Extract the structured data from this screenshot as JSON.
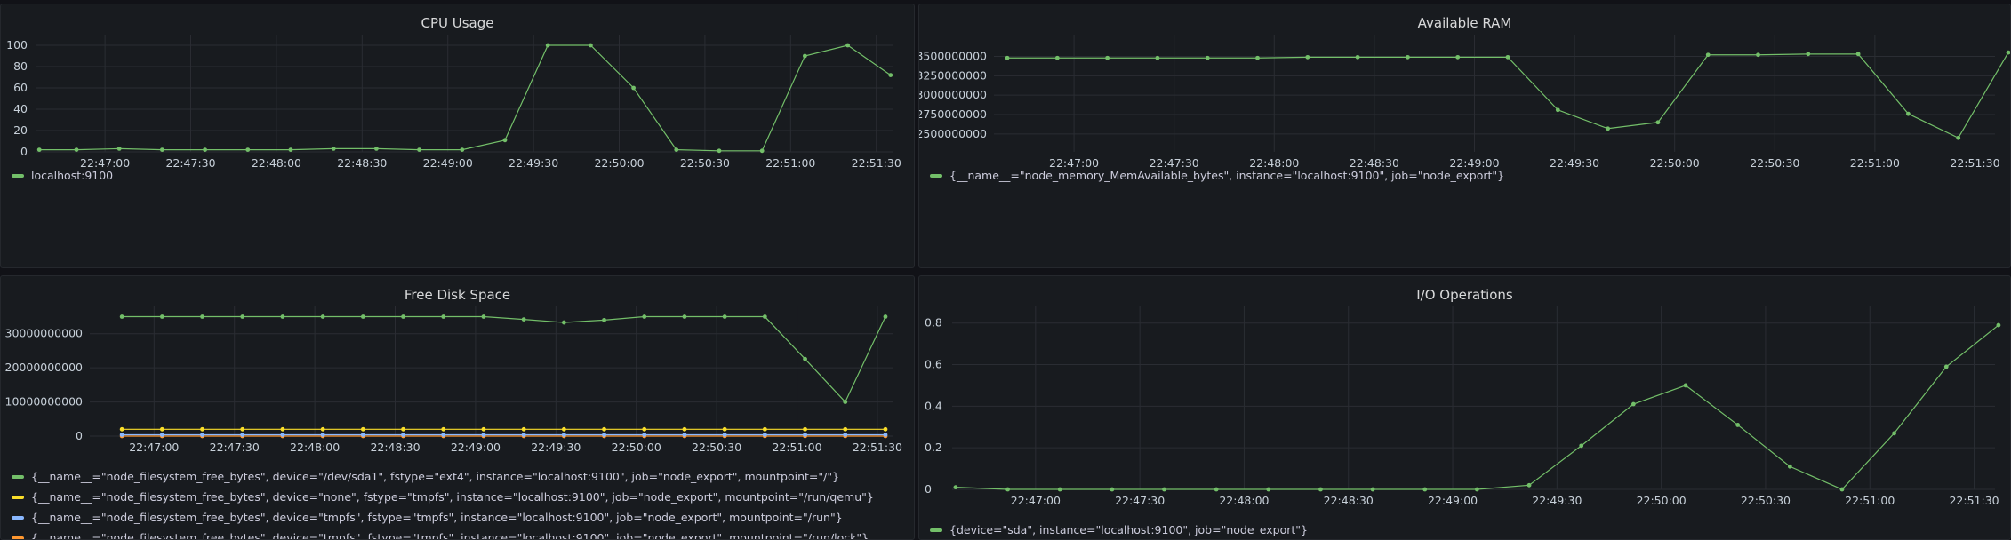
{
  "panels": [
    {
      "id": "cpu",
      "title": "CPU Usage",
      "legend": [
        {
          "label": "localhost:9100",
          "color": "#73bf69"
        }
      ]
    },
    {
      "id": "ram",
      "title": "Available RAM",
      "legend": [
        {
          "label": "{__name__=\"node_memory_MemAvailable_bytes\", instance=\"localhost:9100\", job=\"node_export\"}",
          "color": "#73bf69"
        }
      ]
    },
    {
      "id": "disk",
      "title": "Free Disk Space",
      "legend": [
        {
          "label": "{__name__=\"node_filesystem_free_bytes\", device=\"/dev/sda1\", fstype=\"ext4\", instance=\"localhost:9100\", job=\"node_export\", mountpoint=\"/\"}",
          "color": "#73bf69"
        },
        {
          "label": "{__name__=\"node_filesystem_free_bytes\", device=\"none\", fstype=\"tmpfs\", instance=\"localhost:9100\", job=\"node_export\", mountpoint=\"/run/qemu\"}",
          "color": "#fade2a"
        },
        {
          "label": "{__name__=\"node_filesystem_free_bytes\", device=\"tmpfs\", fstype=\"tmpfs\", instance=\"localhost:9100\", job=\"node_export\", mountpoint=\"/run\"}",
          "color": "#8ab8ff"
        },
        {
          "label": "{__name__=\"node_filesystem_free_bytes\", device=\"tmpfs\", fstype=\"tmpfs\", instance=\"localhost:9100\", job=\"node_export\", mountpoint=\"/run/lock\"}",
          "color": "#ff9830"
        }
      ]
    },
    {
      "id": "io",
      "title": "I/O Operations",
      "legend": [
        {
          "label": "{device=\"sda\", instance=\"localhost:9100\", job=\"node_export\"}",
          "color": "#73bf69"
        }
      ]
    }
  ],
  "chart_data": [
    {
      "type": "line",
      "title": "CPU Usage",
      "x_ticks": [
        "22:47:00",
        "22:47:30",
        "22:48:00",
        "22:48:30",
        "22:49:00",
        "22:49:30",
        "22:50:00",
        "22:50:30",
        "22:51:00",
        "22:51:30"
      ],
      "x_range": [
        "22:46:36",
        "22:51:36"
      ],
      "ylim": [
        0,
        110
      ],
      "y_ticks": [
        "0",
        "20",
        "40",
        "60",
        "80",
        "100"
      ],
      "grid": true,
      "series": [
        {
          "name": "localhost:9100",
          "color": "#73bf69",
          "x": [
            "22:46:37",
            "22:46:50",
            "22:47:05",
            "22:47:20",
            "22:47:35",
            "22:47:50",
            "22:48:05",
            "22:48:20",
            "22:48:35",
            "22:48:50",
            "22:49:05",
            "22:49:20",
            "22:49:35",
            "22:49:50",
            "22:50:05",
            "22:50:20",
            "22:50:35",
            "22:50:50",
            "22:51:05",
            "22:51:20",
            "22:51:35"
          ],
          "values": [
            2,
            2,
            3,
            2,
            2,
            2,
            2,
            3,
            3,
            2,
            2,
            11,
            100,
            100,
            60,
            2,
            1,
            1,
            90,
            100,
            72
          ]
        }
      ]
    },
    {
      "type": "line",
      "title": "Available RAM",
      "x_ticks": [
        "22:47:00",
        "22:47:30",
        "22:48:00",
        "22:48:30",
        "22:49:00",
        "22:49:30",
        "22:50:00",
        "22:50:30",
        "22:51:00",
        "22:51:30"
      ],
      "x_range": [
        "22:46:36",
        "22:51:36"
      ],
      "ylim": [
        2270000000,
        3780000000
      ],
      "y_ticks": [
        "2500000000",
        "2750000000",
        "3000000000",
        "3250000000",
        "3500000000"
      ],
      "grid": true,
      "series": [
        {
          "name": "{__name__=\"node_memory_MemAvailable_bytes\", instance=\"localhost:9100\", job=\"node_export\"}",
          "color": "#73bf69",
          "x": [
            "22:46:40",
            "22:46:55",
            "22:47:10",
            "22:47:25",
            "22:47:40",
            "22:47:55",
            "22:48:10",
            "22:48:25",
            "22:48:40",
            "22:48:55",
            "22:49:10",
            "22:49:25",
            "22:49:40",
            "22:49:55",
            "22:50:10",
            "22:50:25",
            "22:50:40",
            "22:50:55",
            "22:51:10",
            "22:51:25",
            "22:51:40"
          ],
          "values": [
            3480000000,
            3480000000,
            3480000000,
            3480000000,
            3480000000,
            3480000000,
            3490000000,
            3490000000,
            3490000000,
            3490000000,
            3490000000,
            2810000000,
            2570000000,
            2650000000,
            3520000000,
            3520000000,
            3530000000,
            3530000000,
            2760000000,
            2450000000,
            3550000000
          ]
        }
      ]
    },
    {
      "type": "line",
      "title": "Free Disk Space",
      "x_ticks": [
        "22:47:00",
        "22:47:30",
        "22:48:00",
        "22:48:30",
        "22:49:00",
        "22:49:30",
        "22:50:00",
        "22:50:30",
        "22:51:00",
        "22:51:30"
      ],
      "x_range": [
        "22:46:36",
        "22:51:36"
      ],
      "ylim": [
        0,
        38000000000
      ],
      "y_ticks": [
        "0",
        "10000000000",
        "20000000000",
        "30000000000"
      ],
      "grid": true,
      "series": [
        {
          "name": "{__name__=\"node_filesystem_free_bytes\", device=\"/dev/sda1\", fstype=\"ext4\", instance=\"localhost:9100\", job=\"node_export\", mountpoint=\"/\"}",
          "color": "#73bf69",
          "x": [
            "22:46:48",
            "22:47:03",
            "22:47:18",
            "22:47:33",
            "22:47:48",
            "22:48:03",
            "22:48:18",
            "22:48:33",
            "22:48:48",
            "22:49:03",
            "22:49:18",
            "22:49:33",
            "22:49:48",
            "22:50:03",
            "22:50:18",
            "22:50:33",
            "22:50:48",
            "22:51:03",
            "22:51:18",
            "22:51:33"
          ],
          "values": [
            35000000000,
            35000000000,
            35000000000,
            35000000000,
            35000000000,
            35000000000,
            35000000000,
            35000000000,
            35000000000,
            35000000000,
            34200000000,
            33300000000,
            34000000000,
            35000000000,
            35000000000,
            35000000000,
            35000000000,
            22600000000,
            10000000000,
            35000000000
          ]
        },
        {
          "name": "{__name__=\"node_filesystem_free_bytes\", device=\"none\", fstype=\"tmpfs\", instance=\"localhost:9100\", job=\"node_export\", mountpoint=\"/run/qemu\"}",
          "color": "#fade2a",
          "x": [
            "22:46:48",
            "22:47:03",
            "22:47:18",
            "22:47:33",
            "22:47:48",
            "22:48:03",
            "22:48:18",
            "22:48:33",
            "22:48:48",
            "22:49:03",
            "22:49:18",
            "22:49:33",
            "22:49:48",
            "22:50:03",
            "22:50:18",
            "22:50:33",
            "22:50:48",
            "22:51:03",
            "22:51:18",
            "22:51:33"
          ],
          "values": [
            2000000000,
            2000000000,
            2000000000,
            2000000000,
            2000000000,
            2000000000,
            2000000000,
            2000000000,
            2000000000,
            2000000000,
            2000000000,
            2000000000,
            2000000000,
            2000000000,
            2000000000,
            2000000000,
            2000000000,
            2000000000,
            2000000000,
            2000000000
          ]
        },
        {
          "name": "{__name__=\"node_filesystem_free_bytes\", device=\"tmpfs\", fstype=\"tmpfs\", instance=\"localhost:9100\", job=\"node_export\", mountpoint=\"/run\"}",
          "color": "#8ab8ff",
          "x": [
            "22:46:48",
            "22:47:03",
            "22:47:18",
            "22:47:33",
            "22:47:48",
            "22:48:03",
            "22:48:18",
            "22:48:33",
            "22:48:48",
            "22:49:03",
            "22:49:18",
            "22:49:33",
            "22:49:48",
            "22:50:03",
            "22:50:18",
            "22:50:33",
            "22:50:48",
            "22:51:03",
            "22:51:18",
            "22:51:33"
          ],
          "values": [
            400000000,
            400000000,
            400000000,
            400000000,
            400000000,
            400000000,
            400000000,
            400000000,
            400000000,
            400000000,
            400000000,
            400000000,
            400000000,
            400000000,
            400000000,
            400000000,
            400000000,
            400000000,
            400000000,
            400000000
          ]
        },
        {
          "name": "{__name__=\"node_filesystem_free_bytes\", device=\"tmpfs\", fstype=\"tmpfs\", instance=\"localhost:9100\", job=\"node_export\", mountpoint=\"/run/lock\"}",
          "color": "#ff9830",
          "x": [
            "22:46:48",
            "22:47:03",
            "22:47:18",
            "22:47:33",
            "22:47:48",
            "22:48:03",
            "22:48:18",
            "22:48:33",
            "22:48:48",
            "22:49:03",
            "22:49:18",
            "22:49:33",
            "22:49:48",
            "22:50:03",
            "22:50:18",
            "22:50:33",
            "22:50:48",
            "22:51:03",
            "22:51:18",
            "22:51:33"
          ],
          "values": [
            5000000,
            5000000,
            5000000,
            5000000,
            5000000,
            5000000,
            5000000,
            5000000,
            5000000,
            5000000,
            5000000,
            5000000,
            5000000,
            5000000,
            5000000,
            5000000,
            5000000,
            5000000,
            5000000,
            5000000
          ]
        }
      ]
    },
    {
      "type": "line",
      "title": "I/O Operations",
      "x_ticks": [
        "22:47:00",
        "22:47:30",
        "22:48:00",
        "22:48:30",
        "22:49:00",
        "22:49:30",
        "22:50:00",
        "22:50:30",
        "22:51:00",
        "22:51:30"
      ],
      "x_range": [
        "22:46:36",
        "22:51:36"
      ],
      "ylim": [
        0,
        0.88
      ],
      "y_ticks": [
        "0",
        "0.2",
        "0.4",
        "0.6",
        "0.8"
      ],
      "grid": true,
      "series": [
        {
          "name": "{device=\"sda\", instance=\"localhost:9100\", job=\"node_export\"}",
          "color": "#73bf69",
          "x": [
            "22:46:37",
            "22:46:52",
            "22:47:07",
            "22:47:22",
            "22:47:37",
            "22:47:52",
            "22:48:07",
            "22:48:22",
            "22:48:37",
            "22:48:52",
            "22:49:07",
            "22:49:22",
            "22:49:37",
            "22:49:52",
            "22:50:07",
            "22:50:22",
            "22:50:37",
            "22:50:52",
            "22:51:07",
            "22:51:22",
            "22:51:37"
          ],
          "values": [
            0.01,
            0,
            0,
            0,
            0,
            0,
            0,
            0,
            0,
            0,
            0,
            0.02,
            0.21,
            0.41,
            0.5,
            0.31,
            0.11,
            0,
            0.27,
            0.59,
            0.79
          ]
        }
      ]
    }
  ]
}
